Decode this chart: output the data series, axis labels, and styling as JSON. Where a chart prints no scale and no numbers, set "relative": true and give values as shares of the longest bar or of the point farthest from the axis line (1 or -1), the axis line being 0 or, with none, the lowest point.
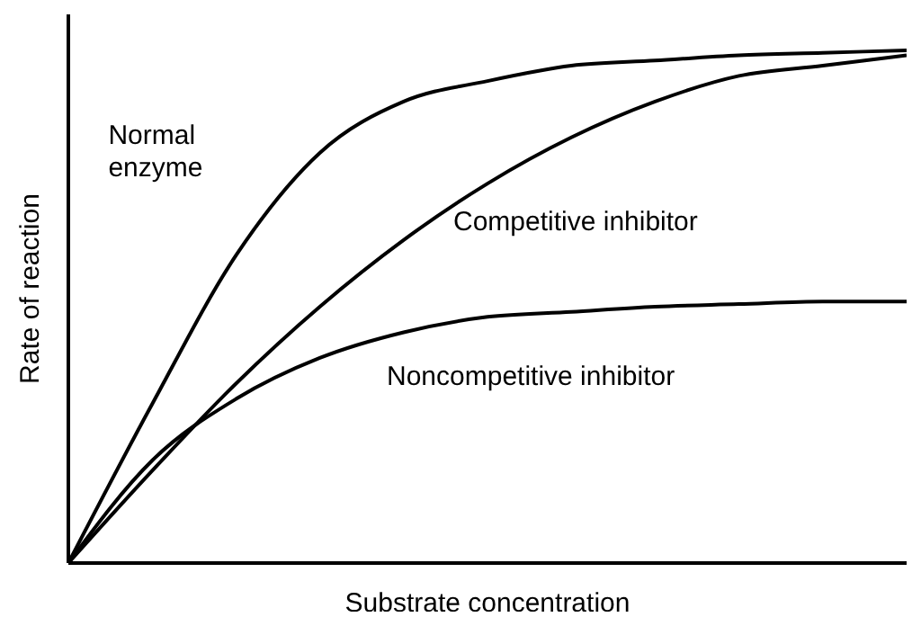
{
  "chart_data": {
    "type": "line",
    "relative": true,
    "xlabel": "Substrate concentration",
    "ylabel": "Rate of reaction",
    "categories": [
      null,
      null,
      null,
      null,
      null,
      null,
      null,
      null,
      null,
      null,
      null
    ],
    "series": [
      {
        "name": "Normal enzyme",
        "color": "#000000",
        "values": [
          0,
          0.31,
          0.6,
          0.8,
          0.9,
          0.94,
          0.97,
          0.98,
          0.99,
          0.995,
          1
        ]
      },
      {
        "name": "Competitive inhibitor",
        "color": "#000000",
        "values": [
          0,
          0.18,
          0.35,
          0.5,
          0.63,
          0.74,
          0.83,
          0.9,
          0.95,
          0.97,
          0.99
        ]
      },
      {
        "name": "Noncompetitive inhibitor",
        "color": "#000000",
        "values": [
          0,
          0.2,
          0.32,
          0.4,
          0.45,
          0.48,
          0.49,
          0.5,
          0.505,
          0.51,
          0.51
        ]
      }
    ],
    "grid": false,
    "legend": false,
    "marker": "none",
    "line_style": "solid"
  }
}
